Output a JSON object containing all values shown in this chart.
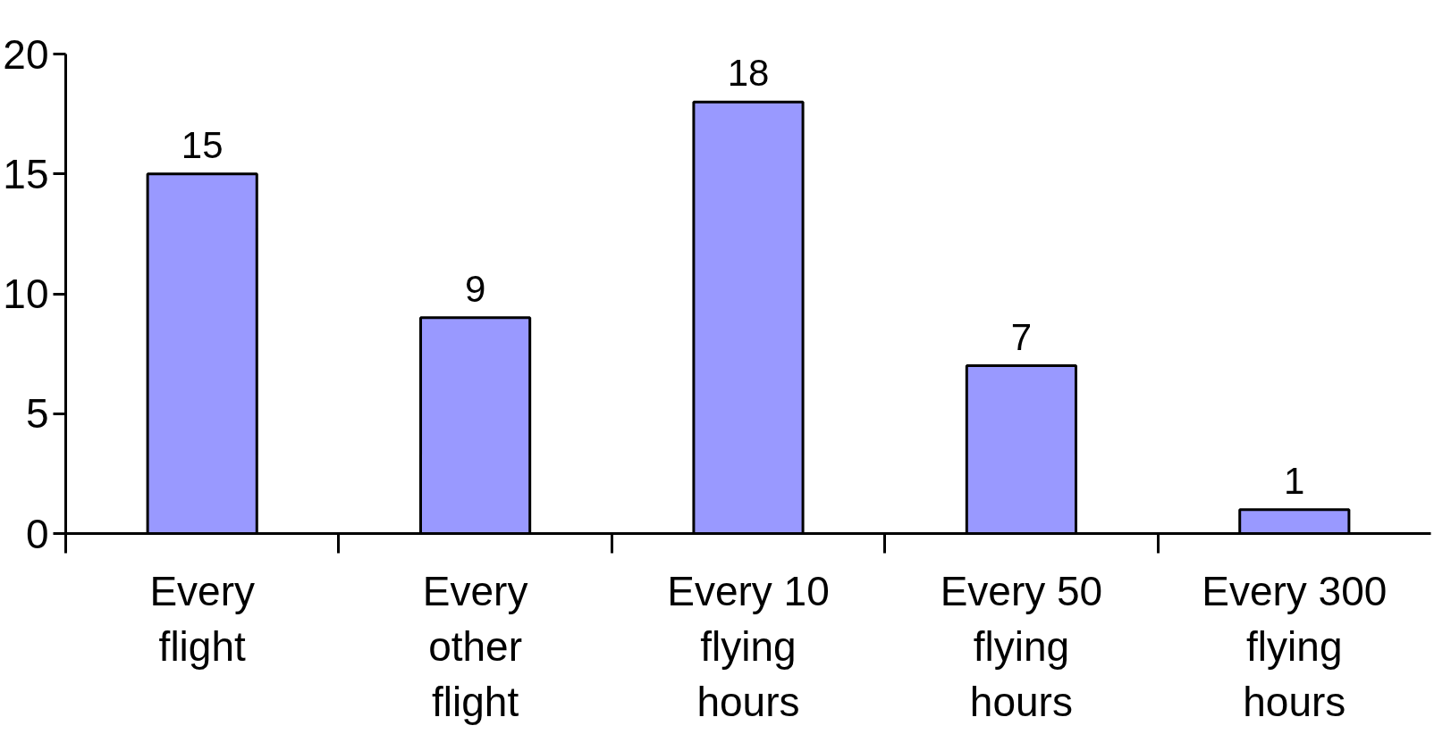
{
  "chart_data": {
    "type": "bar",
    "categories": [
      "Every\nflight",
      "Every\nother\nflight",
      "Every 10\nflying\nhours",
      "Every 50\nflying\nhours",
      "Every 300\nflying\nhours"
    ],
    "values": [
      15,
      9,
      18,
      7,
      1
    ],
    "color": "#9999ff",
    "ylim": [
      0,
      20
    ],
    "yticks": [
      0,
      5,
      10,
      15,
      20
    ],
    "grid": false,
    "data_labels": true
  }
}
